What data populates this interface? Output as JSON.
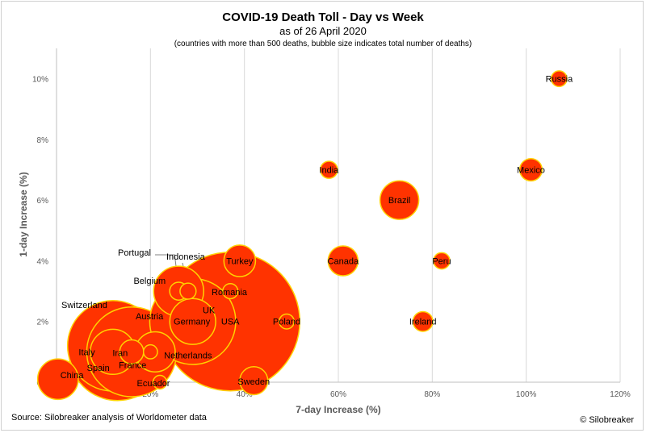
{
  "chart_data": {
    "type": "scatter",
    "title": "COVID-19 Death Toll - Day vs Week",
    "subtitle": "as of 26 April 2020",
    "note": "(countries with more than 500 deaths, bubble size indicates total number of deaths)",
    "xlabel": "7-day Increase (%)",
    "ylabel": "1-day Increase (%)",
    "xlim": [
      0,
      120
    ],
    "ylim": [
      0,
      11
    ],
    "x_ticks": [
      0,
      20,
      40,
      60,
      80,
      100,
      120
    ],
    "x_tick_labels": [
      "0%",
      "20%",
      "40%",
      "60%",
      "80%",
      "100%",
      "120%"
    ],
    "y_ticks": [
      0,
      2,
      4,
      6,
      8,
      10
    ],
    "y_tick_labels": [
      "0%",
      "2%",
      "4%",
      "6%",
      "8%",
      "10%"
    ],
    "grid": "vertical",
    "bubble_fill": "#ff3300",
    "bubble_stroke": "#ffd200",
    "points": [
      {
        "label": "USA",
        "x": 37,
        "y": 2.0,
        "size": 54000
      },
      {
        "label": "Italy",
        "x": 13,
        "y": 1.0,
        "size": 26600
      },
      {
        "label": "Spain",
        "x": 12,
        "y": 1.2,
        "size": 23000
      },
      {
        "label": "France",
        "x": 16,
        "y": 1.0,
        "size": 22600
      },
      {
        "label": "UK",
        "x": 29,
        "y": 2.0,
        "size": 20700
      },
      {
        "label": "Belgium",
        "x": 26,
        "y": 3.0,
        "size": 7000
      },
      {
        "label": "Germany",
        "x": 29,
        "y": 2.0,
        "size": 5900
      },
      {
        "label": "Iran",
        "x": 12,
        "y": 1.0,
        "size": 5700
      },
      {
        "label": "China",
        "x": 0.3,
        "y": 0.1,
        "size": 4600
      },
      {
        "label": "Netherlands",
        "x": 21,
        "y": 1.0,
        "size": 4500
      },
      {
        "label": "Brazil",
        "x": 73,
        "y": 6.0,
        "size": 4200
      },
      {
        "label": "Turkey",
        "x": 39,
        "y": 4.0,
        "size": 2800
      },
      {
        "label": "Canada",
        "x": 61,
        "y": 4.0,
        "size": 2500
      },
      {
        "label": "Sweden",
        "x": 42,
        "y": 0.05,
        "size": 2200
      },
      {
        "label": "Switzerland",
        "x": 16,
        "y": 1.0,
        "size": 1600
      },
      {
        "label": "Mexico",
        "x": 101,
        "y": 7.0,
        "size": 1400
      },
      {
        "label": "Ireland",
        "x": 78,
        "y": 2.0,
        "size": 1100
      },
      {
        "label": "Portugal",
        "x": 26,
        "y": 3.0,
        "size": 900
      },
      {
        "label": "India",
        "x": 58,
        "y": 7.0,
        "size": 820
      },
      {
        "label": "Peru",
        "x": 82,
        "y": 4.0,
        "size": 750
      },
      {
        "label": "Indonesia",
        "x": 28,
        "y": 3.0,
        "size": 720
      },
      {
        "label": "Russia",
        "x": 107,
        "y": 10.0,
        "size": 690
      },
      {
        "label": "Romania",
        "x": 37,
        "y": 3.0,
        "size": 640
      },
      {
        "label": "Poland",
        "x": 49,
        "y": 2.0,
        "size": 620
      },
      {
        "label": "Austria",
        "x": 20,
        "y": 1.0,
        "size": 550
      },
      {
        "label": "Ecuador",
        "x": 22,
        "y": 0.0,
        "size": 520
      }
    ]
  },
  "footer": {
    "source": "Source: Silobreaker analysis of Worldometer data",
    "credit": "© Silobreaker"
  }
}
